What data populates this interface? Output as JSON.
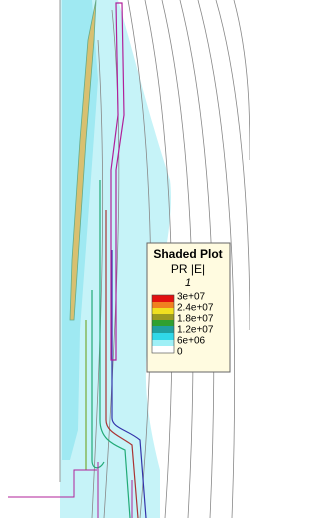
{
  "legend": {
    "title": "Shaded Plot",
    "quantity": "PR |E|",
    "index": "1",
    "labels": [
      "3e+07",
      "2.4e+07",
      "1.8e+07",
      "1.2e+07",
      "6e+06",
      "0"
    ]
  }
}
